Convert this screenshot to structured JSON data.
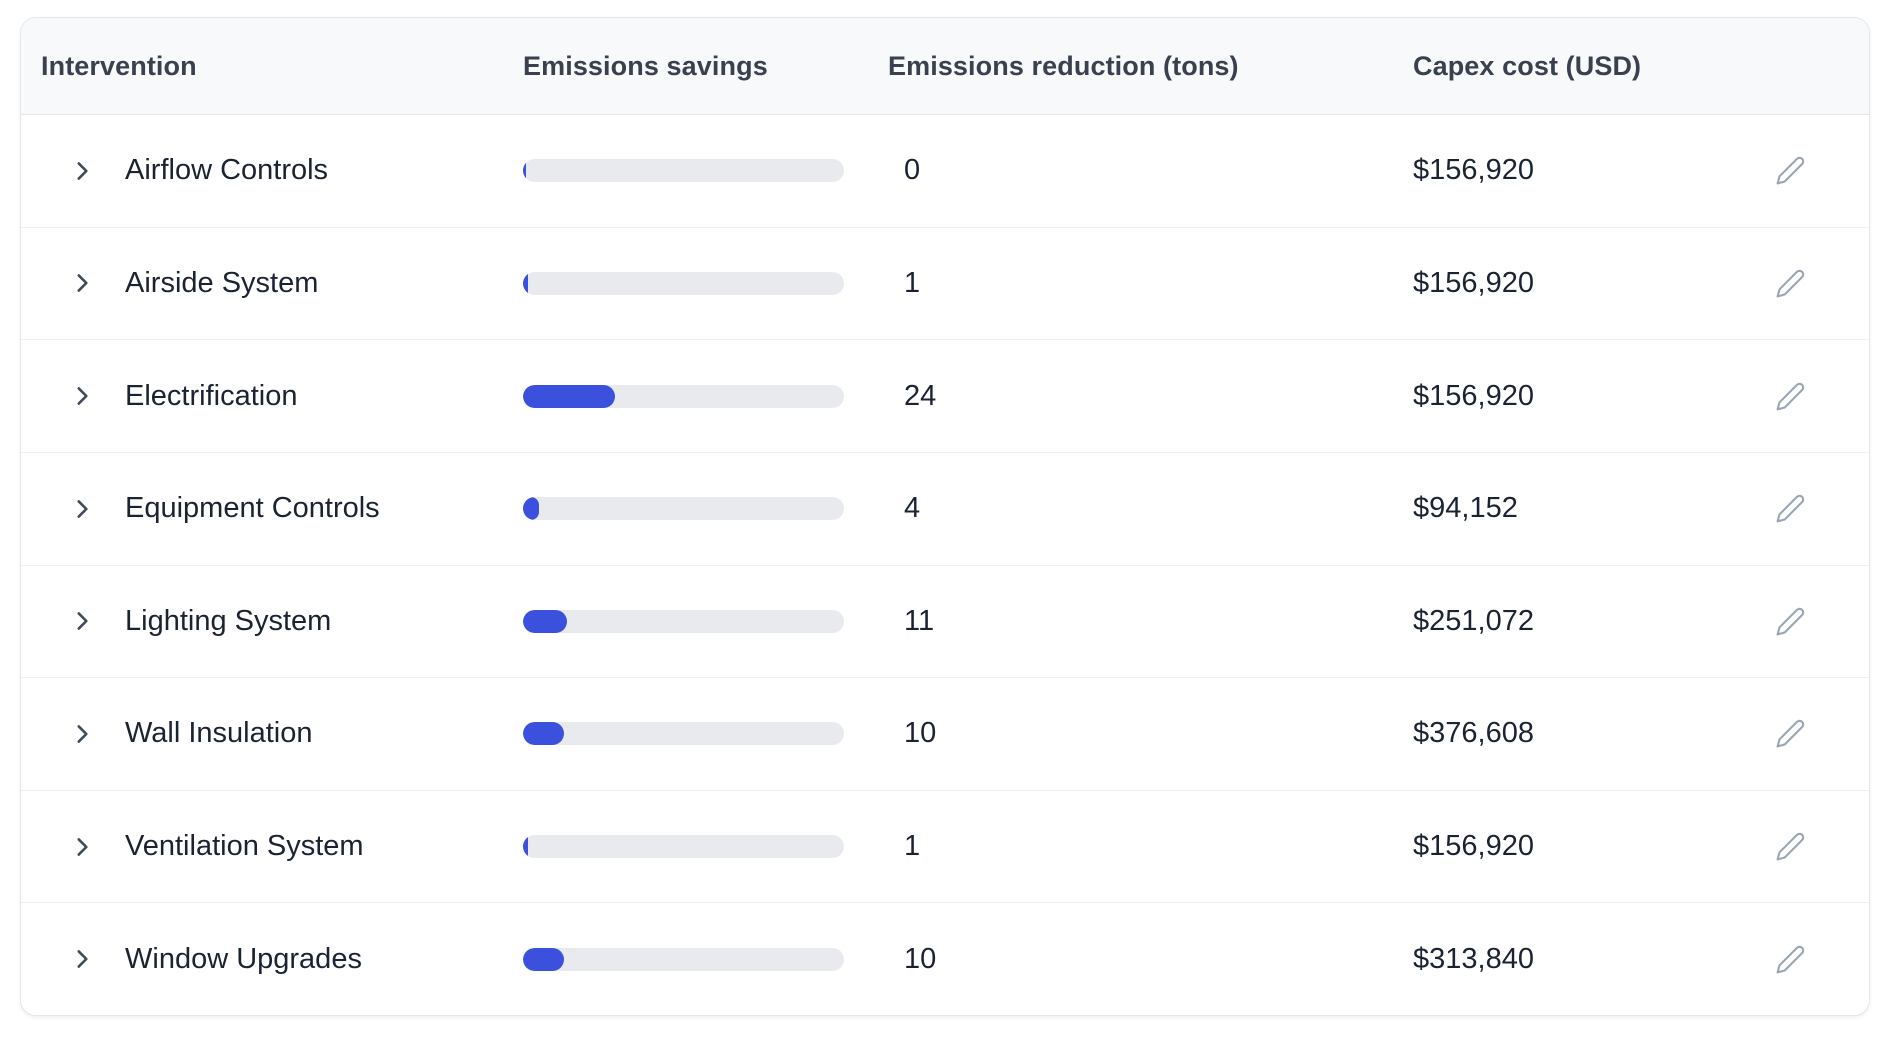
{
  "colors": {
    "bar_fill": "#3b50dc",
    "bar_track": "#e9eaee",
    "header_bg": "#f8f9fb",
    "header_text": "#39414f",
    "cell_text": "#1b2332",
    "edit_icon": "#9aa5b4"
  },
  "icons": {
    "row_expand": "chevron-right-icon",
    "row_edit": "pencil-icon"
  },
  "table": {
    "columns": [
      {
        "id": "intervention",
        "label": "Intervention"
      },
      {
        "id": "savings",
        "label": "Emissions savings"
      },
      {
        "id": "reduction",
        "label": "Emissions reduction (tons)"
      },
      {
        "id": "capex",
        "label": "Capex cost (USD)"
      }
    ],
    "rows": [
      {
        "intervention": "Airflow Controls",
        "bar_percent": 0.8,
        "reduction": "0",
        "capex": "$156,920"
      },
      {
        "intervention": "Airside System",
        "bar_percent": 1.5,
        "reduction": "1",
        "capex": "$156,920"
      },
      {
        "intervention": "Electrification",
        "bar_percent": 28.7,
        "reduction": "24",
        "capex": "$156,920"
      },
      {
        "intervention": "Equipment Controls",
        "bar_percent": 5.0,
        "reduction": "4",
        "capex": "$94,152"
      },
      {
        "intervention": "Lighting System",
        "bar_percent": 13.7,
        "reduction": "11",
        "capex": "$251,072"
      },
      {
        "intervention": "Wall Insulation",
        "bar_percent": 12.7,
        "reduction": "10",
        "capex": "$376,608"
      },
      {
        "intervention": "Ventilation System",
        "bar_percent": 1.5,
        "reduction": "1",
        "capex": "$156,920"
      },
      {
        "intervention": "Window Upgrades",
        "bar_percent": 12.7,
        "reduction": "10",
        "capex": "$313,840"
      }
    ]
  }
}
